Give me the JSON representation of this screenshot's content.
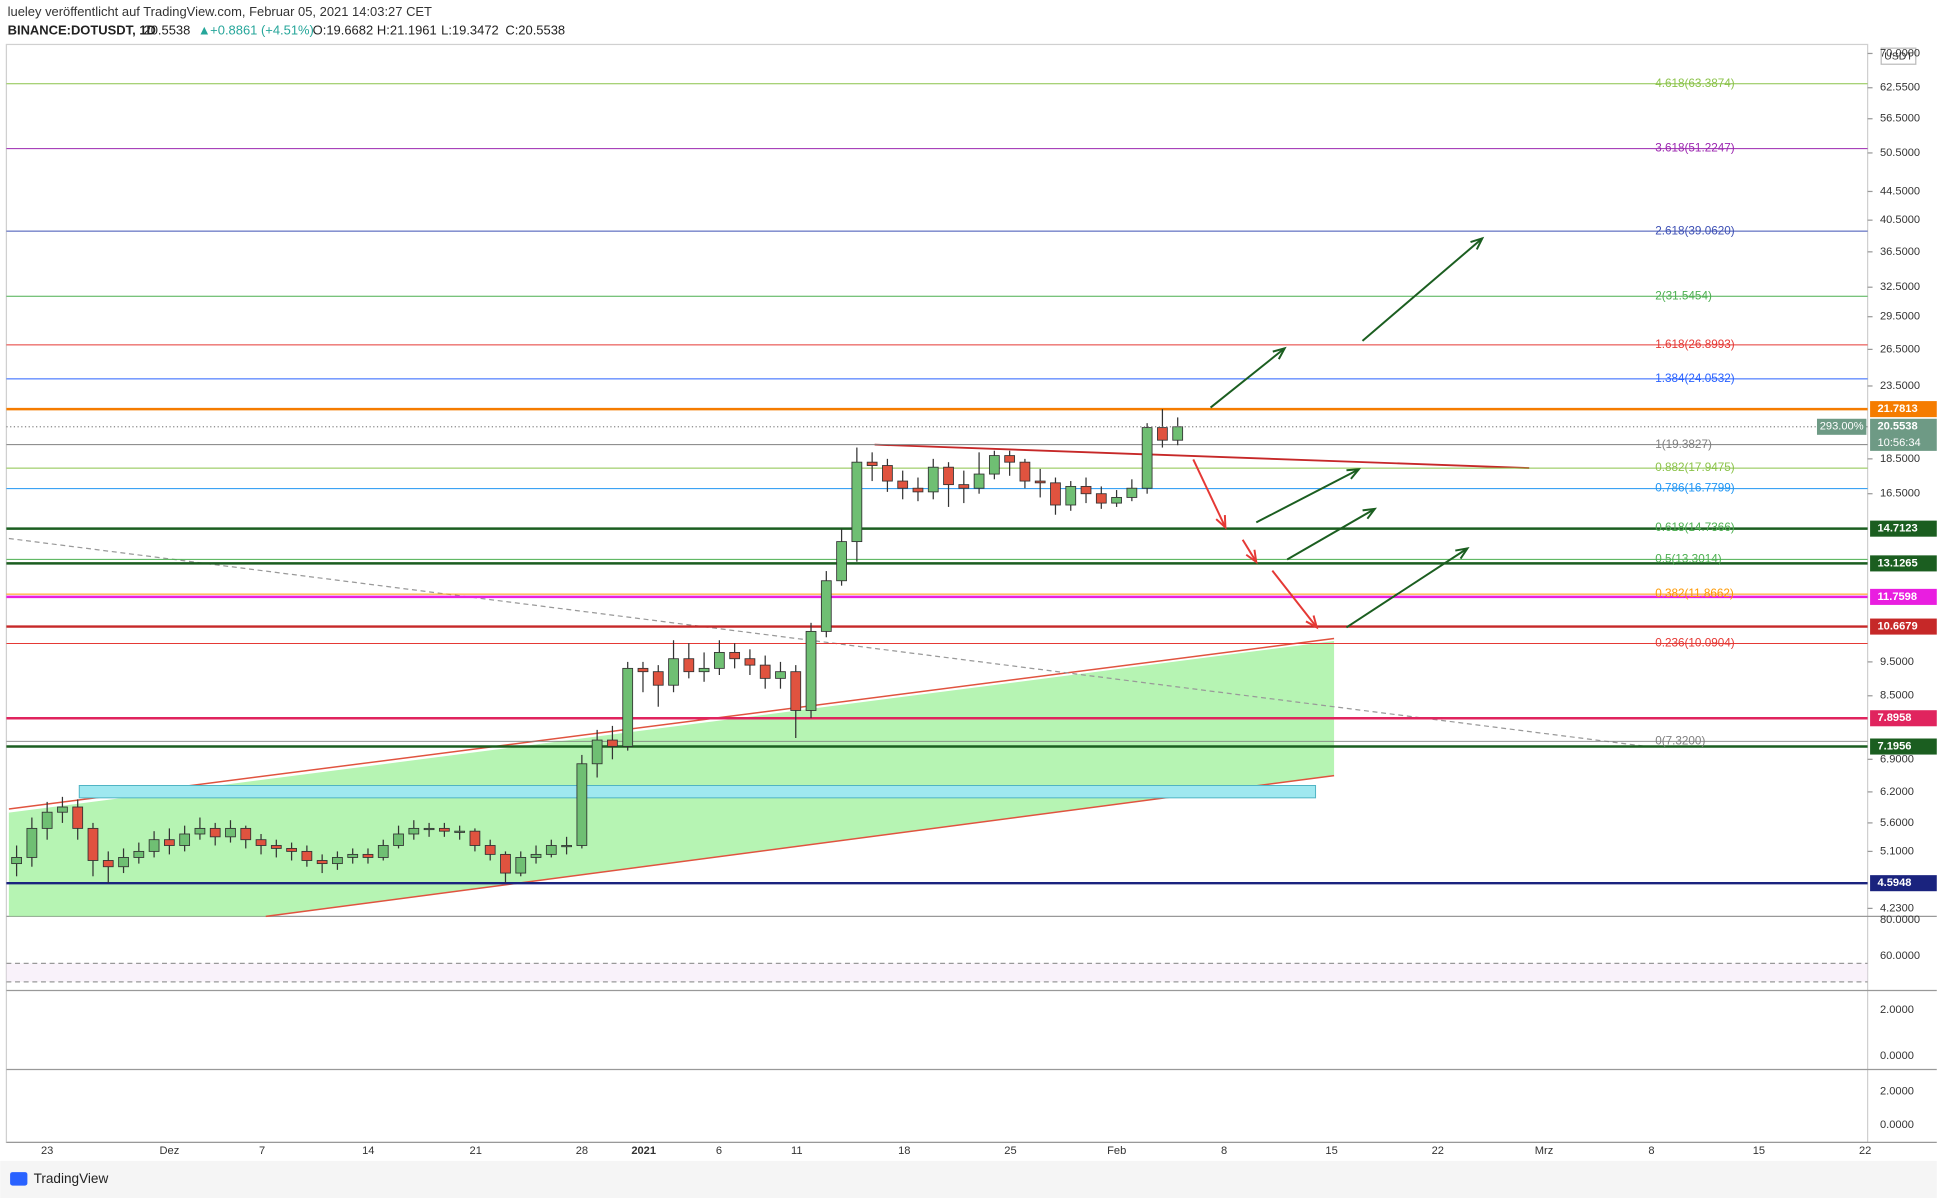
{
  "header": {
    "published": "lueley veröffentlicht auf TradingView.com, Februar 05, 2021 14:03:27 CET",
    "symbol": "BINANCE:DOTUSDT, 1D",
    "last": "20.5538",
    "change": "+0.8861 (+4.51%)",
    "open": "O:19.6682",
    "high": "H:21.1961",
    "low": "L:19.3472",
    "close": "C:20.5538"
  },
  "chart_data": {
    "type": "candlestick",
    "currency": "USDT",
    "log_scale": true,
    "ylim": [
      4.12,
      72.1
    ],
    "yticks": [
      {
        "value": 70,
        "label": "70.0000"
      },
      {
        "value": 62.55,
        "label": "62.5500"
      },
      {
        "value": 56.5,
        "label": "56.5000"
      },
      {
        "value": 50.5,
        "label": "50.5000"
      },
      {
        "value": 44.5,
        "label": "44.5000"
      },
      {
        "value": 40.5,
        "label": "40.5000"
      },
      {
        "value": 36.5,
        "label": "36.5000"
      },
      {
        "value": 32.5,
        "label": "32.5000"
      },
      {
        "value": 29.5,
        "label": "29.5000"
      },
      {
        "value": 26.5,
        "label": "26.5000"
      },
      {
        "value": 23.5,
        "label": "23.5000"
      },
      {
        "value": 18.5,
        "label": "18.5000"
      },
      {
        "value": 16.5,
        "label": "16.5000"
      },
      {
        "value": 9.5,
        "label": "9.5000"
      },
      {
        "value": 8.5,
        "label": "8.5000"
      },
      {
        "value": 6.9,
        "label": "6.9000"
      },
      {
        "value": 6.2,
        "label": "6.2000"
      },
      {
        "value": 5.6,
        "label": "5.6000"
      },
      {
        "value": 5.1,
        "label": "5.1000"
      },
      {
        "value": 4.23,
        "label": "4.2300"
      }
    ],
    "xtick_labels": [
      "23",
      "Dez",
      "7",
      "14",
      "21",
      "28",
      "2021",
      "6",
      "11",
      "18",
      "25",
      "Feb",
      "8",
      "15",
      "22",
      "Mrz",
      "8",
      "15",
      "22"
    ],
    "up_color": "#6fbf73",
    "down_color": "#e0533f",
    "candles": [
      [
        4.9,
        5.2,
        4.7,
        5.0
      ],
      [
        5.0,
        5.7,
        4.85,
        5.5
      ],
      [
        5.5,
        6.0,
        5.3,
        5.8
      ],
      [
        5.8,
        6.1,
        5.6,
        5.9
      ],
      [
        5.9,
        6.05,
        5.3,
        5.5
      ],
      [
        5.5,
        5.6,
        4.7,
        4.95
      ],
      [
        4.95,
        5.1,
        4.6,
        4.85
      ],
      [
        4.85,
        5.15,
        4.75,
        5.0
      ],
      [
        5.0,
        5.25,
        4.9,
        5.1
      ],
      [
        5.1,
        5.45,
        5.0,
        5.3
      ],
      [
        5.3,
        5.5,
        5.05,
        5.2
      ],
      [
        5.2,
        5.55,
        5.1,
        5.4
      ],
      [
        5.4,
        5.7,
        5.3,
        5.5
      ],
      [
        5.5,
        5.6,
        5.2,
        5.35
      ],
      [
        5.35,
        5.65,
        5.25,
        5.5
      ],
      [
        5.5,
        5.55,
        5.15,
        5.3
      ],
      [
        5.3,
        5.4,
        5.05,
        5.2
      ],
      [
        5.2,
        5.3,
        5.0,
        5.15
      ],
      [
        5.15,
        5.25,
        4.95,
        5.1
      ],
      [
        5.1,
        5.2,
        4.85,
        4.95
      ],
      [
        4.95,
        5.05,
        4.75,
        4.9
      ],
      [
        4.9,
        5.1,
        4.8,
        5.0
      ],
      [
        5.0,
        5.15,
        4.9,
        5.05
      ],
      [
        5.05,
        5.15,
        4.9,
        5.0
      ],
      [
        5.0,
        5.3,
        4.95,
        5.2
      ],
      [
        5.2,
        5.55,
        5.15,
        5.4
      ],
      [
        5.4,
        5.65,
        5.3,
        5.5
      ],
      [
        5.5,
        5.6,
        5.35,
        5.5
      ],
      [
        5.5,
        5.6,
        5.35,
        5.45
      ],
      [
        5.45,
        5.55,
        5.3,
        5.45
      ],
      [
        5.45,
        5.5,
        5.1,
        5.2
      ],
      [
        5.2,
        5.3,
        4.95,
        5.05
      ],
      [
        5.05,
        5.1,
        4.6,
        4.75
      ],
      [
        4.75,
        5.1,
        4.7,
        5.0
      ],
      [
        5.0,
        5.2,
        4.9,
        5.05
      ],
      [
        5.05,
        5.3,
        5.0,
        5.2
      ],
      [
        5.2,
        5.35,
        5.05,
        5.2
      ],
      [
        5.2,
        7.0,
        5.15,
        6.8
      ],
      [
        6.8,
        7.6,
        6.5,
        7.35
      ],
      [
        7.35,
        7.7,
        6.9,
        7.2
      ],
      [
        7.2,
        9.5,
        7.1,
        9.3
      ],
      [
        9.3,
        9.5,
        8.6,
        9.2
      ],
      [
        9.2,
        9.4,
        8.2,
        8.8
      ],
      [
        8.8,
        10.2,
        8.6,
        9.6
      ],
      [
        9.6,
        10.1,
        9.0,
        9.2
      ],
      [
        9.2,
        9.8,
        8.9,
        9.3
      ],
      [
        9.3,
        10.2,
        9.1,
        9.8
      ],
      [
        9.8,
        10.1,
        9.3,
        9.6
      ],
      [
        9.6,
        9.9,
        9.1,
        9.4
      ],
      [
        9.4,
        9.7,
        8.7,
        9.0
      ],
      [
        9.0,
        9.5,
        8.7,
        9.2
      ],
      [
        9.2,
        9.4,
        7.4,
        8.1
      ],
      [
        8.1,
        10.8,
        7.9,
        10.5
      ],
      [
        10.5,
        12.8,
        10.3,
        12.4
      ],
      [
        12.4,
        14.7,
        12.2,
        14.1
      ],
      [
        14.1,
        19.2,
        13.2,
        18.3
      ],
      [
        18.3,
        18.9,
        17.2,
        18.1
      ],
      [
        18.1,
        18.5,
        16.6,
        17.2
      ],
      [
        17.2,
        17.8,
        16.2,
        16.8
      ],
      [
        16.8,
        17.4,
        16.1,
        16.6
      ],
      [
        16.6,
        18.5,
        16.2,
        18.0
      ],
      [
        18.0,
        18.3,
        15.8,
        17.0
      ],
      [
        17.0,
        17.8,
        16.0,
        16.8
      ],
      [
        16.8,
        18.9,
        16.5,
        17.6
      ],
      [
        17.6,
        19.0,
        17.3,
        18.7
      ],
      [
        18.7,
        19.0,
        17.5,
        18.3
      ],
      [
        18.3,
        18.5,
        16.8,
        17.2
      ],
      [
        17.2,
        17.9,
        16.3,
        17.1
      ],
      [
        17.1,
        17.4,
        15.4,
        15.9
      ],
      [
        15.9,
        17.2,
        15.6,
        16.9
      ],
      [
        16.9,
        17.4,
        16.0,
        16.5
      ],
      [
        16.5,
        16.9,
        15.7,
        16.0
      ],
      [
        16.0,
        16.7,
        15.8,
        16.3
      ],
      [
        16.3,
        17.3,
        16.1,
        16.8
      ],
      [
        16.8,
        20.8,
        16.5,
        20.5
      ],
      [
        20.5,
        21.78,
        19.2,
        19.67
      ],
      [
        19.6682,
        21.1961,
        19.3472,
        20.5538
      ]
    ],
    "fib_levels": [
      {
        "value": 63.3874,
        "label": "4.618(63.3874)",
        "color": "#8bc34a"
      },
      {
        "value": 51.2247,
        "label": "3.618(51.2247)",
        "color": "#9c27b0"
      },
      {
        "value": 39.062,
        "label": "2.618(39.0620)",
        "color": "#3f51b5"
      },
      {
        "value": 31.5454,
        "label": "2(31.5454)",
        "color": "#4caf50"
      },
      {
        "value": 26.8993,
        "label": "1.618(26.8993)",
        "color": "#e53935"
      },
      {
        "value": 24.0532,
        "label": "1.384(24.0532)",
        "color": "#2962ff"
      },
      {
        "value": 19.3827,
        "label": "1(19.3827)",
        "color": "#808080"
      },
      {
        "value": 17.9475,
        "label": "0.882(17.9475)",
        "color": "#8bc34a"
      },
      {
        "value": 16.7799,
        "label": "0.786(16.7799)",
        "color": "#2196f3"
      },
      {
        "value": 14.7366,
        "label": "0.618(14.7366)",
        "color": "#4caf50"
      },
      {
        "value": 13.3014,
        "label": "0.5(13.3014)",
        "color": "#4caf50"
      },
      {
        "value": 11.8662,
        "label": "0.382(11.8662)",
        "color": "#ff9800"
      },
      {
        "value": 10.0904,
        "label": "0.236(10.0904)",
        "color": "#e53935"
      },
      {
        "value": 7.32,
        "label": "0(7.3200)",
        "color": "#808080"
      }
    ],
    "levels": [
      {
        "value": 21.7813,
        "label": "21.7813",
        "color": "#f57c00"
      },
      {
        "value": 14.7123,
        "label": "14.7123",
        "color": "#1b5e20"
      },
      {
        "value": 13.1265,
        "label": "13.1265",
        "color": "#1b5e20"
      },
      {
        "value": 11.7598,
        "label": "11.7598",
        "color": "#e91ee0"
      },
      {
        "value": 10.6679,
        "label": "10.6679",
        "color": "#c62828"
      },
      {
        "value": 7.8958,
        "label": "7.8958",
        "color": "#e0245e"
      },
      {
        "value": 7.1956,
        "label": "7.1956",
        "color": "#1b5e20"
      },
      {
        "value": 4.5948,
        "label": "4.5948",
        "color": "#1a237e"
      }
    ],
    "current": {
      "value": 20.5538,
      "label": "20.5538",
      "percent": "293.00%",
      "countdown": "10:56:34",
      "color": "#6e9a85"
    }
  },
  "panes": {
    "rsi": [
      "80.0000",
      "60.0000"
    ],
    "macd": [
      "2.0000",
      "0.0000"
    ],
    "third": [
      "2.0000",
      "0.0000"
    ]
  },
  "footer": {
    "brand": "TradingView"
  }
}
